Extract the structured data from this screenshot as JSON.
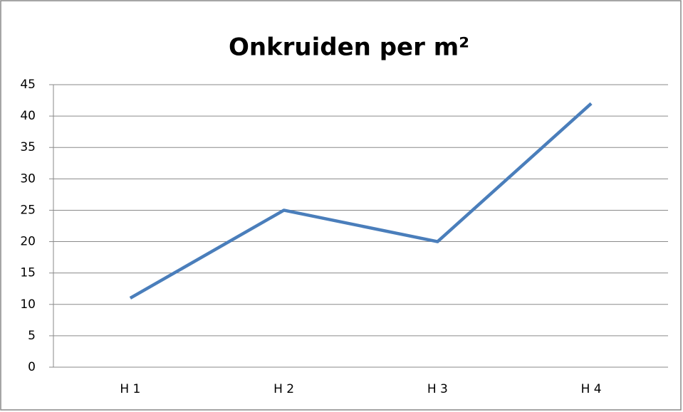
{
  "chart_data": {
    "type": "line",
    "title": "Onkruiden per m²",
    "categories": [
      "H 1",
      "H 2",
      "H 3",
      "H 4"
    ],
    "series": [
      {
        "name": "Onkruiden per m²",
        "color": "#4a7ebb",
        "values": [
          11,
          25,
          20,
          42
        ]
      }
    ],
    "ylim": [
      0,
      45
    ],
    "yticks": [
      0,
      5,
      10,
      15,
      20,
      25,
      30,
      35,
      40,
      45
    ],
    "grid": true
  }
}
